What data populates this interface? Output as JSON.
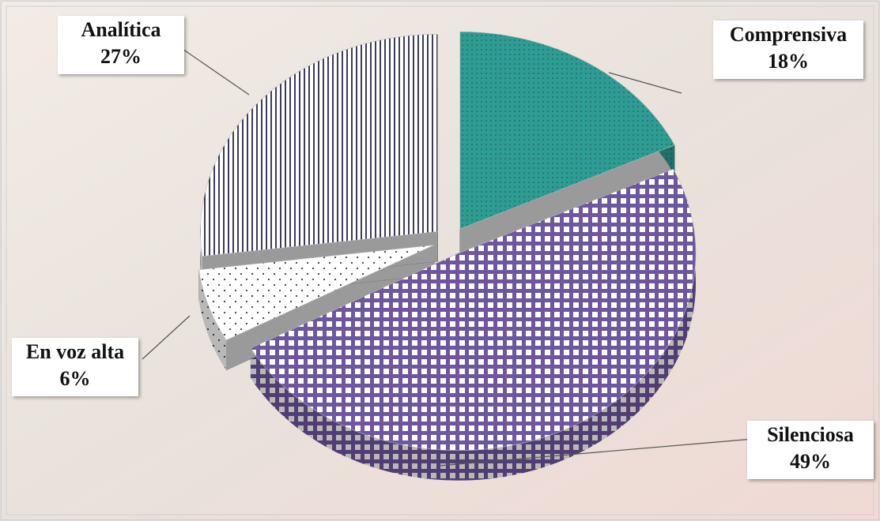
{
  "chart_data": {
    "type": "pie",
    "categories": [
      "Comprensiva",
      "Silenciosa",
      "En voz alta",
      "Analítica"
    ],
    "values": [
      18,
      49,
      6,
      27
    ],
    "value_labels": [
      "18%",
      "49%",
      "6%",
      "27%"
    ],
    "colors": [
      "#2f9c94",
      "#6f57a0",
      "#3a3a3a",
      "#3d3a5c"
    ]
  }
}
